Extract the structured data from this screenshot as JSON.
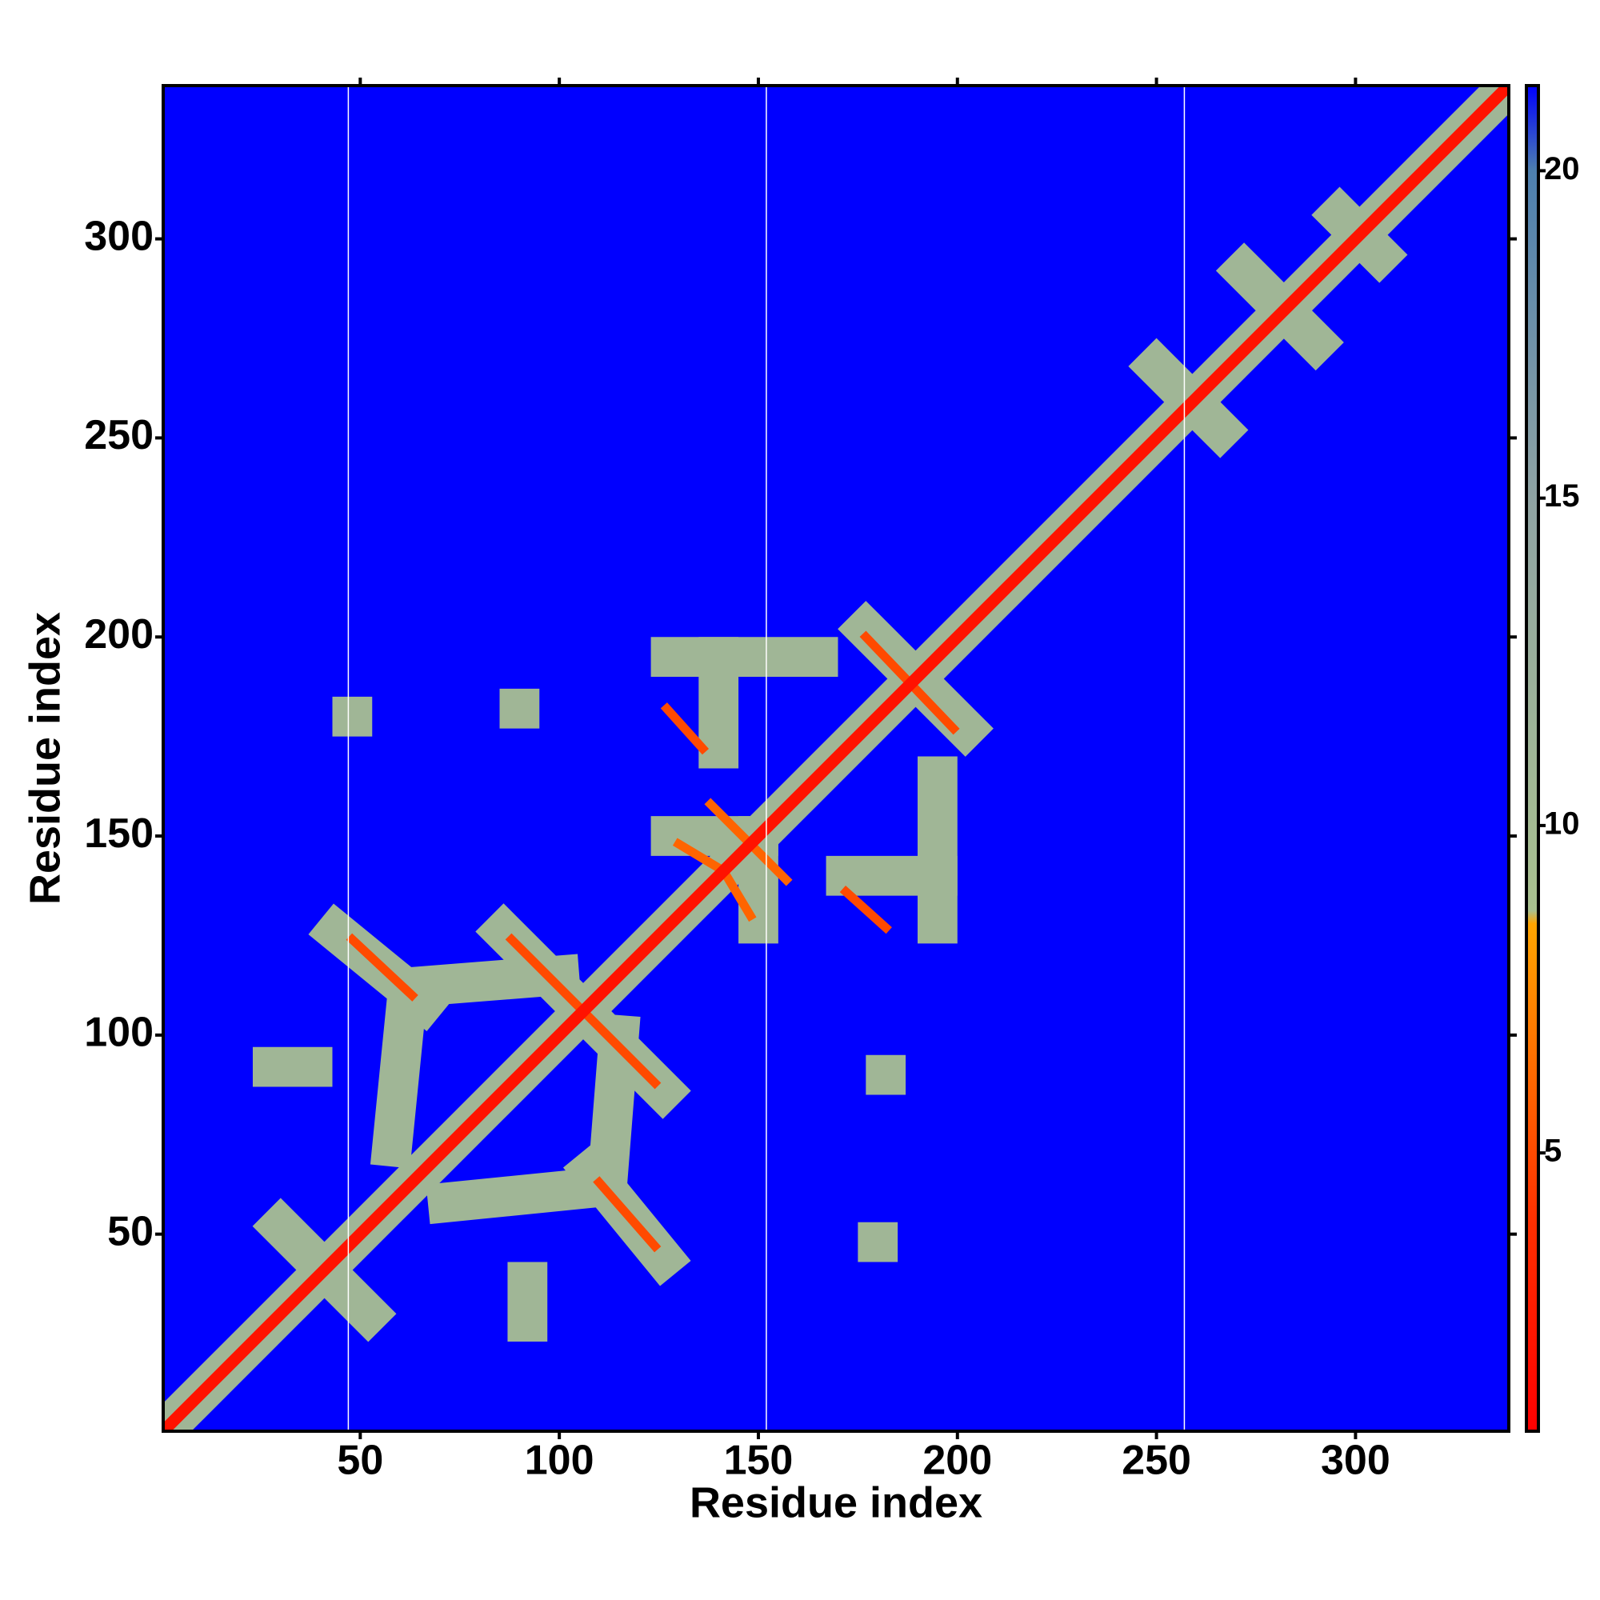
{
  "chart_data": {
    "type": "heatmap",
    "xlabel": "Residue index",
    "ylabel": "Residue index",
    "xlim": [
      0.5,
      338.5
    ],
    "ylim": [
      0.5,
      338.5
    ],
    "xticks": [
      50,
      100,
      150,
      200,
      250,
      300
    ],
    "yticks": [
      50,
      100,
      150,
      200,
      250,
      300
    ],
    "zlim": [
      0.75,
      21.3
    ],
    "zticks": [
      5,
      10,
      15,
      20
    ],
    "colorscale": [
      [
        0.75,
        "#ff0000"
      ],
      [
        4,
        "#ff3000"
      ],
      [
        8.5,
        "#ffa500"
      ],
      [
        8.7,
        "#a9c18f"
      ],
      [
        15,
        "#8fa3a3"
      ],
      [
        20,
        "#4d7fae"
      ],
      [
        21.3,
        "#0000ff"
      ]
    ],
    "gap_columns": [
      47,
      152,
      257
    ],
    "features": [
      {
        "x": [
          1,
          338
        ],
        "y": [
          1,
          338
        ],
        "value": 11
      },
      {
        "x": [
          30,
          52
        ],
        "y": [
          52,
          30
        ],
        "value": 11
      },
      {
        "x": [
          44,
          66
        ],
        "y": [
          126,
          108
        ],
        "value": 11
      },
      {
        "x": [
          126,
          108
        ],
        "y": [
          44,
          66
        ],
        "value": 11
      },
      {
        "x": [
          86,
          126
        ],
        "y": [
          126,
          86
        ],
        "value": 11
      },
      {
        "x": [
          58,
          62
        ],
        "y": [
          72,
          112
        ],
        "value": 11
      },
      {
        "x": [
          62,
          100
        ],
        "y": [
          112,
          115
        ],
        "value": 11
      },
      {
        "x": [
          72,
          112
        ],
        "y": [
          58,
          62
        ],
        "value": 11
      },
      {
        "x": [
          112,
          115
        ],
        "y": [
          62,
          100
        ],
        "value": 11
      },
      {
        "x": [
          28,
          38
        ],
        "y": [
          92,
          92
        ],
        "value": 11
      },
      {
        "x": [
          92,
          92
        ],
        "y": [
          28,
          38
        ],
        "value": 11
      },
      {
        "x": [
          128,
          165
        ],
        "y": [
          195,
          195
        ],
        "value": 11
      },
      {
        "x": [
          195,
          195
        ],
        "y": [
          128,
          165
        ],
        "value": 11
      },
      {
        "x": [
          128,
          150
        ],
        "y": [
          150,
          150
        ],
        "value": 11
      },
      {
        "x": [
          150,
          150
        ],
        "y": [
          128,
          150
        ],
        "value": 11
      },
      {
        "x": [
          172,
          195
        ],
        "y": [
          140,
          140
        ],
        "value": 11
      },
      {
        "x": [
          140,
          140
        ],
        "y": [
          172,
          195
        ],
        "value": 11
      },
      {
        "x": [
          177,
          202
        ],
        "y": [
          202,
          177
        ],
        "value": 11
      },
      {
        "x": [
          250,
          266
        ],
        "y": [
          268,
          252
        ],
        "value": 11
      },
      {
        "x": [
          272,
          290
        ],
        "y": [
          292,
          274
        ],
        "value": 11
      },
      {
        "x": [
          296,
          306
        ],
        "y": [
          306,
          296
        ],
        "value": 11
      },
      {
        "x": [
          182,
          182
        ],
        "y": [
          90,
          90
        ],
        "value": 11
      },
      {
        "x": [
          90,
          90
        ],
        "y": [
          182,
          182
        ],
        "value": 11
      },
      {
        "x": [
          180,
          180
        ],
        "y": [
          48,
          48
        ],
        "value": 11
      },
      {
        "x": [
          48,
          48
        ],
        "y": [
          180,
          180
        ],
        "value": 11
      },
      {
        "x": [
          48,
          63
        ],
        "y": [
          124,
          110
        ],
        "value": 5
      },
      {
        "x": [
          110,
          124
        ],
        "y": [
          63,
          47
        ],
        "value": 5
      },
      {
        "x": [
          88,
          124
        ],
        "y": [
          124,
          88
        ],
        "value": 5
      },
      {
        "x": [
          127,
          136
        ],
        "y": [
          182,
          172
        ],
        "value": 5
      },
      {
        "x": [
          172,
          182
        ],
        "y": [
          136,
          127
        ],
        "value": 5
      },
      {
        "x": [
          138,
          157
        ],
        "y": [
          158,
          139
        ],
        "value": 6
      },
      {
        "x": [
          130,
          140
        ],
        "y": [
          148,
          142
        ],
        "value": 6
      },
      {
        "x": [
          142,
          148
        ],
        "y": [
          140,
          130
        ],
        "value": 6
      },
      {
        "x": [
          177,
          199
        ],
        "y": [
          200,
          177
        ],
        "value": 5
      },
      {
        "x": [
          1,
          338
        ],
        "y": [
          1,
          338
        ],
        "value": 2
      }
    ]
  }
}
